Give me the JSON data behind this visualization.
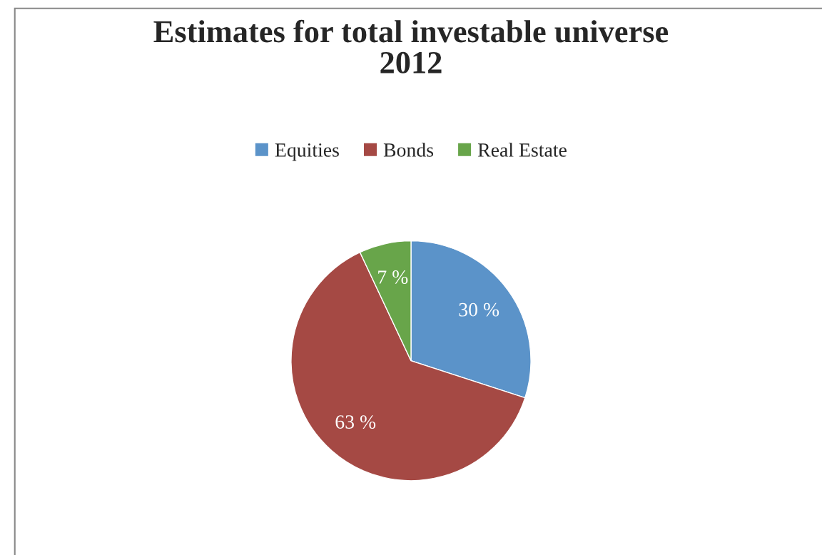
{
  "chart_data": {
    "type": "pie",
    "title": "Estimates for total investable universe\n2012",
    "categories": [
      "Equities",
      "Bonds",
      "Real Estate"
    ],
    "values": [
      30,
      63,
      7
    ],
    "colors": [
      "#5b93c9",
      "#a54944",
      "#68a54a"
    ],
    "value_labels": [
      "30 %",
      "63 %",
      "7 %"
    ],
    "legend": "top"
  }
}
